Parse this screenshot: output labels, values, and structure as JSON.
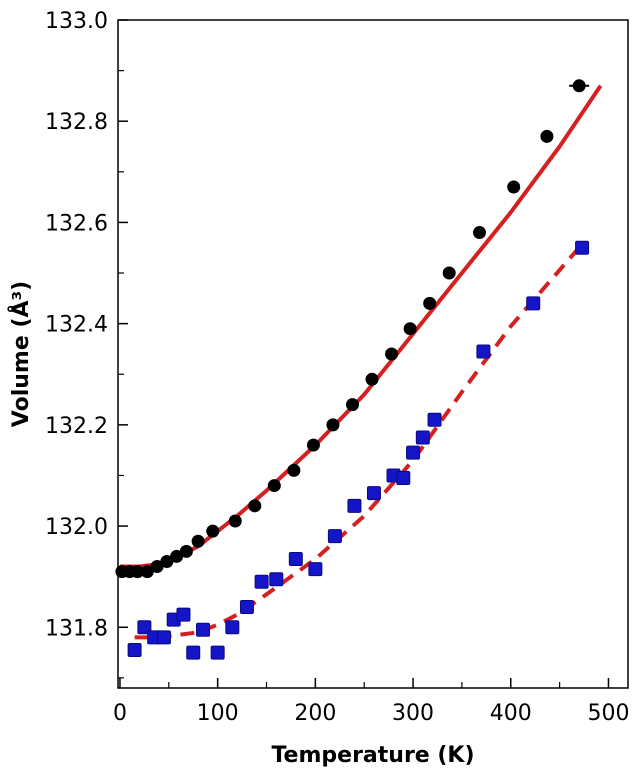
{
  "chart_data": {
    "type": "scatter",
    "xlabel": "Temperature (K)",
    "ylabel": "Volume (Å³)",
    "xlim": [
      -2,
      520
    ],
    "ylim": [
      131.68,
      133.0
    ],
    "x_ticks": [
      0,
      100,
      200,
      300,
      400,
      500
    ],
    "y_ticks": [
      131.8,
      132.0,
      132.2,
      132.4,
      132.6,
      132.8,
      133.0
    ],
    "x_tick_labels": [
      "0",
      "100",
      "200",
      "300",
      "400",
      "500"
    ],
    "y_tick_labels": [
      "131.8",
      "132.0",
      "132.2",
      "132.4",
      "132.6",
      "132.8",
      "133.0"
    ],
    "grid": false,
    "legend": "none",
    "series": [
      {
        "marker": "circle",
        "color": "#000000",
        "points": [
          [
            2,
            131.91
          ],
          [
            10,
            131.91
          ],
          [
            18,
            131.91
          ],
          [
            28,
            131.91
          ],
          [
            38,
            131.92
          ],
          [
            48,
            131.93
          ],
          [
            58,
            131.94
          ],
          [
            68,
            131.95
          ],
          [
            80,
            131.97
          ],
          [
            95,
            131.99
          ],
          [
            118,
            132.01
          ],
          [
            138,
            132.04
          ],
          [
            158,
            132.08
          ],
          [
            178,
            132.11
          ],
          [
            198,
            132.16
          ],
          [
            218,
            132.2
          ],
          [
            238,
            132.24
          ],
          [
            258,
            132.29
          ],
          [
            278,
            132.34
          ],
          [
            297,
            132.39
          ],
          [
            317,
            132.44
          ],
          [
            337,
            132.5
          ],
          [
            368,
            132.58
          ],
          [
            403,
            132.67
          ],
          [
            437,
            132.77
          ],
          [
            470,
            132.87
          ]
        ]
      },
      {
        "marker": "square",
        "color": "#1515c8",
        "points": [
          [
            15,
            131.755
          ],
          [
            25,
            131.8
          ],
          [
            35,
            131.78
          ],
          [
            45,
            131.78
          ],
          [
            55,
            131.815
          ],
          [
            65,
            131.825
          ],
          [
            75,
            131.75
          ],
          [
            85,
            131.795
          ],
          [
            100,
            131.75
          ],
          [
            115,
            131.8
          ],
          [
            130,
            131.84
          ],
          [
            145,
            131.89
          ],
          [
            160,
            131.895
          ],
          [
            180,
            131.935
          ],
          [
            200,
            131.915
          ],
          [
            220,
            131.98
          ],
          [
            240,
            132.04
          ],
          [
            260,
            132.065
          ],
          [
            280,
            132.1
          ],
          [
            290,
            132.095
          ],
          [
            300,
            132.145
          ],
          [
            310,
            132.175
          ],
          [
            322,
            132.21
          ],
          [
            372,
            132.345
          ],
          [
            423,
            132.44
          ],
          [
            473,
            132.55
          ]
        ]
      }
    ],
    "fits": [
      {
        "style": "solid",
        "color": "#d42020",
        "points": [
          [
            0,
            131.92
          ],
          [
            20,
            131.92
          ],
          [
            40,
            131.925
          ],
          [
            60,
            131.94
          ],
          [
            80,
            131.96
          ],
          [
            100,
            131.99
          ],
          [
            120,
            132.02
          ],
          [
            150,
            132.07
          ],
          [
            200,
            132.16
          ],
          [
            250,
            132.26
          ],
          [
            300,
            132.38
          ],
          [
            350,
            132.5
          ],
          [
            400,
            132.62
          ],
          [
            450,
            132.75
          ],
          [
            492,
            132.87
          ]
        ]
      },
      {
        "style": "dashed",
        "color": "#d42020",
        "points": [
          [
            15,
            131.78
          ],
          [
            40,
            131.78
          ],
          [
            60,
            131.785
          ],
          [
            80,
            131.79
          ],
          [
            100,
            131.805
          ],
          [
            120,
            131.825
          ],
          [
            150,
            131.865
          ],
          [
            200,
            131.935
          ],
          [
            250,
            132.02
          ],
          [
            300,
            132.13
          ],
          [
            350,
            132.265
          ],
          [
            400,
            132.395
          ],
          [
            470,
            132.55
          ]
        ]
      }
    ]
  }
}
